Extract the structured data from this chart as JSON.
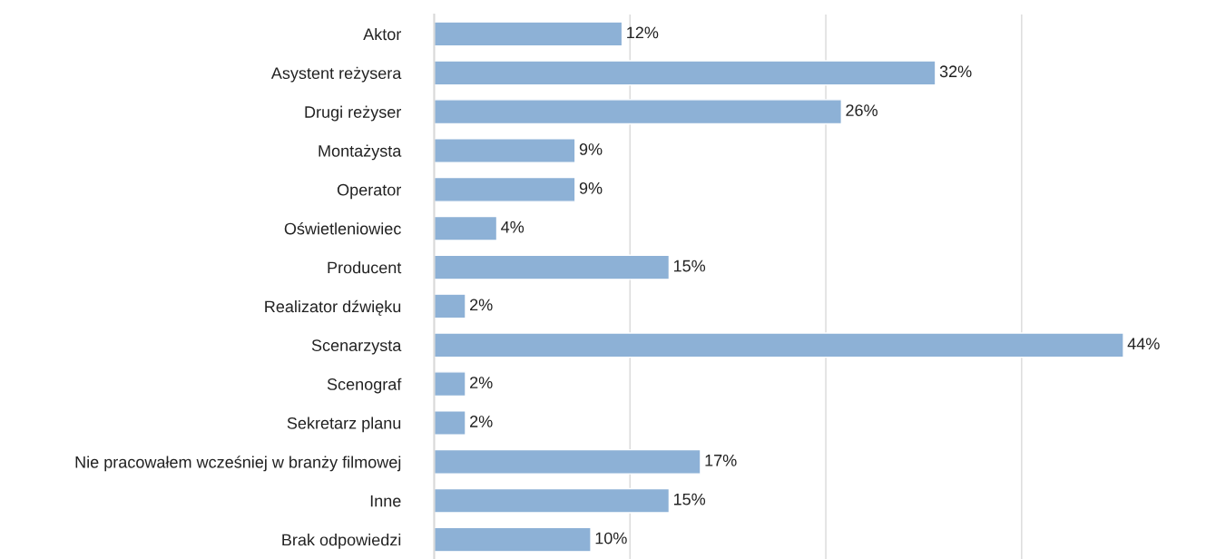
{
  "chart_data": {
    "type": "bar",
    "orientation": "horizontal",
    "categories": [
      "Aktor",
      "Asystent reżysera",
      "Drugi reżyser",
      "Montażysta",
      "Operator",
      "Oświetleniowiec",
      "Producent",
      "Realizator dźwięku",
      "Scenarzysta",
      "Scenograf",
      "Sekretarz planu",
      "Nie pracowałem wcześniej w branży filmowej",
      "Inne",
      "Brak odpowiedzi"
    ],
    "values": [
      12,
      32,
      26,
      9,
      9,
      4,
      15,
      2,
      44,
      2,
      2,
      17,
      15,
      10
    ],
    "value_labels": [
      "12%",
      "32%",
      "26%",
      "9%",
      "9%",
      "4%",
      "15%",
      "2%",
      "44%",
      "2%",
      "2%",
      "17%",
      "15%",
      "10%"
    ],
    "color": "#8db1d6",
    "xticks": [
      {
        "value": 0,
        "label": null
      },
      {
        "value": 12.5,
        "label": null
      },
      {
        "value": 25,
        "label": null
      },
      {
        "value": 37.5,
        "label": null
      }
    ],
    "grid": "x",
    "tick_labels": "y",
    "legend": false
  }
}
